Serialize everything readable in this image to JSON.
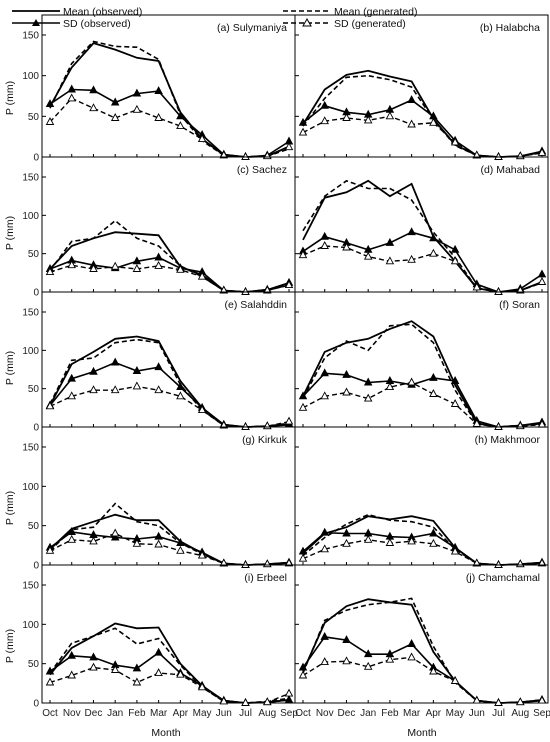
{
  "figure": {
    "xlabel": "Month",
    "ylabel": "P (mm)",
    "legend": {
      "mean_obs": "Mean (observed)",
      "mean_gen": "Mean (generated)",
      "sd_obs": "SD (observed)",
      "sd_gen": "SD (generated)"
    }
  },
  "chart_data": [
    {
      "type": "line",
      "title": "(a) Sulymaniya",
      "categories": [
        "Oct",
        "Nov",
        "Dec",
        "Jan",
        "Feb",
        "Mar",
        "Apr",
        "May",
        "Jun",
        "Jul",
        "Aug",
        "Sep"
      ],
      "ylim": [
        0,
        150
      ],
      "yticks": [
        0,
        50,
        100,
        150
      ],
      "series": [
        {
          "name": "Mean (observed)",
          "values": [
            62,
            110,
            140,
            132,
            122,
            118,
            55,
            22,
            3,
            0,
            1,
            13
          ]
        },
        {
          "name": "Mean (generated)",
          "values": [
            60,
            115,
            142,
            136,
            135,
            120,
            52,
            20,
            2,
            0,
            1,
            10
          ]
        },
        {
          "name": "SD (observed)",
          "values": [
            65,
            83,
            82,
            67,
            78,
            81,
            50,
            27,
            3,
            0,
            2,
            19
          ]
        },
        {
          "name": "SD (generated)",
          "values": [
            43,
            72,
            60,
            48,
            58,
            48,
            38,
            22,
            2,
            0,
            1,
            12
          ]
        }
      ]
    },
    {
      "type": "line",
      "title": "(b) Halabcha",
      "categories": [
        "Oct",
        "Nov",
        "Dec",
        "Jan",
        "Feb",
        "Mar",
        "Apr",
        "May",
        "Jun",
        "Jul",
        "Aug",
        "Sep"
      ],
      "ylim": [
        0,
        150
      ],
      "yticks": [
        0,
        50,
        100,
        150
      ],
      "series": [
        {
          "name": "Mean (observed)",
          "values": [
            40,
            83,
            101,
            106,
            99,
            93,
            47,
            15,
            2,
            0,
            1,
            6
          ]
        },
        {
          "name": "Mean (generated)",
          "values": [
            38,
            72,
            98,
            100,
            95,
            86,
            46,
            14,
            2,
            0,
            1,
            5
          ]
        },
        {
          "name": "SD (observed)",
          "values": [
            42,
            63,
            55,
            52,
            58,
            70,
            50,
            20,
            2,
            0,
            1,
            7
          ]
        },
        {
          "name": "SD (generated)",
          "values": [
            30,
            44,
            48,
            45,
            50,
            40,
            42,
            18,
            2,
            0,
            1,
            5
          ]
        }
      ]
    },
    {
      "type": "line",
      "title": "(c) Sachez",
      "categories": [
        "Oct",
        "Nov",
        "Dec",
        "Jan",
        "Feb",
        "Mar",
        "Apr",
        "May",
        "Jun",
        "Jul",
        "Aug",
        "Sep"
      ],
      "ylim": [
        0,
        150
      ],
      "yticks": [
        0,
        50,
        100,
        150
      ],
      "series": [
        {
          "name": "Mean (observed)",
          "values": [
            30,
            60,
            70,
            78,
            76,
            74,
            33,
            22,
            2,
            0,
            3,
            9
          ]
        },
        {
          "name": "Mean (generated)",
          "values": [
            28,
            66,
            70,
            93,
            70,
            60,
            34,
            20,
            2,
            0,
            2,
            10
          ]
        },
        {
          "name": "SD (observed)",
          "values": [
            30,
            41,
            35,
            31,
            40,
            45,
            31,
            26,
            2,
            0,
            3,
            12
          ]
        },
        {
          "name": "SD (generated)",
          "values": [
            26,
            35,
            30,
            33,
            30,
            34,
            29,
            20,
            2,
            0,
            2,
            9
          ]
        }
      ]
    },
    {
      "type": "line",
      "title": "(d) Mahabad",
      "categories": [
        "Oct",
        "Nov",
        "Dec",
        "Jan",
        "Feb",
        "Mar",
        "Apr",
        "May",
        "Jun",
        "Jul",
        "Aug",
        "Sep"
      ],
      "ylim": [
        0,
        150
      ],
      "yticks": [
        0,
        50,
        100,
        150
      ],
      "series": [
        {
          "name": "Mean (observed)",
          "values": [
            68,
            123,
            130,
            145,
            125,
            141,
            72,
            40,
            5,
            0,
            2,
            13
          ]
        },
        {
          "name": "Mean (generated)",
          "values": [
            80,
            125,
            145,
            135,
            135,
            120,
            78,
            45,
            5,
            0,
            2,
            12
          ]
        },
        {
          "name": "SD (observed)",
          "values": [
            53,
            72,
            64,
            55,
            64,
            78,
            70,
            55,
            10,
            0,
            4,
            23
          ]
        },
        {
          "name": "SD (generated)",
          "values": [
            48,
            60,
            58,
            46,
            40,
            42,
            50,
            40,
            6,
            0,
            2,
            13
          ]
        }
      ]
    },
    {
      "type": "line",
      "title": "(e) Salahddin",
      "categories": [
        "Oct",
        "Nov",
        "Dec",
        "Jan",
        "Feb",
        "Mar",
        "Apr",
        "May",
        "Jun",
        "Jul",
        "Aug",
        "Sep"
      ],
      "ylim": [
        0,
        150
      ],
      "yticks": [
        0,
        50,
        100,
        150
      ],
      "series": [
        {
          "name": "Mean (observed)",
          "values": [
            28,
            82,
            98,
            115,
            118,
            112,
            60,
            25,
            3,
            0,
            1,
            3
          ]
        },
        {
          "name": "Mean (generated)",
          "values": [
            30,
            87,
            90,
            110,
            114,
            110,
            55,
            22,
            2,
            0,
            1,
            5
          ]
        },
        {
          "name": "SD (observed)",
          "values": [
            28,
            63,
            72,
            84,
            73,
            78,
            52,
            25,
            3,
            0,
            1,
            4
          ]
        },
        {
          "name": "SD (generated)",
          "values": [
            27,
            40,
            48,
            48,
            53,
            48,
            40,
            22,
            2,
            0,
            1,
            7
          ]
        }
      ]
    },
    {
      "type": "line",
      "title": "(f) Soran",
      "categories": [
        "Oct",
        "Nov",
        "Dec",
        "Jan",
        "Feb",
        "Mar",
        "Apr",
        "May",
        "Jun",
        "Jul",
        "Aug",
        "Sep"
      ],
      "ylim": [
        0,
        150
      ],
      "yticks": [
        0,
        50,
        100,
        150
      ],
      "series": [
        {
          "name": "Mean (observed)",
          "values": [
            40,
            98,
            110,
            115,
            128,
            138,
            118,
            55,
            5,
            0,
            2,
            5
          ]
        },
        {
          "name": "Mean (generated)",
          "values": [
            38,
            90,
            112,
            100,
            132,
            134,
            110,
            48,
            4,
            0,
            2,
            4
          ]
        },
        {
          "name": "SD (observed)",
          "values": [
            40,
            70,
            68,
            58,
            60,
            55,
            64,
            60,
            8,
            0,
            2,
            6
          ]
        },
        {
          "name": "SD (generated)",
          "values": [
            25,
            40,
            45,
            37,
            52,
            58,
            43,
            30,
            4,
            0,
            1,
            3
          ]
        }
      ]
    },
    {
      "type": "line",
      "title": "(g) Kirkuk",
      "categories": [
        "Oct",
        "Nov",
        "Dec",
        "Jan",
        "Feb",
        "Mar",
        "Apr",
        "May",
        "Jun",
        "Jul",
        "Aug",
        "Sep"
      ],
      "ylim": [
        0,
        150
      ],
      "yticks": [
        0,
        50,
        100,
        150
      ],
      "series": [
        {
          "name": "Mean (observed)",
          "values": [
            20,
            46,
            55,
            64,
            57,
            57,
            30,
            15,
            2,
            0,
            1,
            3
          ]
        },
        {
          "name": "Mean (generated)",
          "values": [
            18,
            45,
            48,
            78,
            55,
            50,
            28,
            14,
            2,
            0,
            1,
            2
          ]
        },
        {
          "name": "SD (observed)",
          "values": [
            22,
            42,
            38,
            35,
            33,
            36,
            28,
            16,
            2,
            0,
            1,
            3
          ]
        },
        {
          "name": "SD (generated)",
          "values": [
            18,
            32,
            30,
            40,
            27,
            26,
            18,
            12,
            2,
            0,
            1,
            2
          ]
        }
      ]
    },
    {
      "type": "line",
      "title": "(h) Makhmoor",
      "categories": [
        "Oct",
        "Nov",
        "Dec",
        "Jan",
        "Feb",
        "Mar",
        "Apr",
        "May",
        "Jun",
        "Jul",
        "Aug",
        "Sep"
      ],
      "ylim": [
        0,
        150
      ],
      "yticks": [
        0,
        50,
        100,
        150
      ],
      "series": [
        {
          "name": "Mean (observed)",
          "values": [
            15,
            40,
            48,
            62,
            58,
            62,
            56,
            22,
            2,
            0,
            1,
            3
          ]
        },
        {
          "name": "Mean (generated)",
          "values": [
            12,
            35,
            52,
            64,
            57,
            55,
            48,
            20,
            2,
            0,
            1,
            2
          ]
        },
        {
          "name": "SD (observed)",
          "values": [
            17,
            41,
            40,
            40,
            36,
            35,
            40,
            22,
            2,
            0,
            1,
            3
          ]
        },
        {
          "name": "SD (generated)",
          "values": [
            8,
            20,
            27,
            32,
            28,
            30,
            27,
            17,
            2,
            0,
            1,
            2
          ]
        }
      ]
    },
    {
      "type": "line",
      "title": "(i) Erbeel",
      "categories": [
        "Oct",
        "Nov",
        "Dec",
        "Jan",
        "Feb",
        "Mar",
        "Apr",
        "May",
        "Jun",
        "Jul",
        "Aug",
        "Sep"
      ],
      "ylim": [
        0,
        150
      ],
      "yticks": [
        0,
        50,
        100,
        150
      ],
      "series": [
        {
          "name": "Mean (observed)",
          "values": [
            36,
            70,
            85,
            101,
            95,
            96,
            50,
            22,
            3,
            0,
            1,
            4
          ]
        },
        {
          "name": "Mean (generated)",
          "values": [
            38,
            76,
            85,
            95,
            75,
            82,
            48,
            20,
            2,
            0,
            2,
            6
          ]
        },
        {
          "name": "SD (observed)",
          "values": [
            40,
            60,
            58,
            48,
            44,
            64,
            38,
            22,
            3,
            0,
            1,
            4
          ]
        },
        {
          "name": "SD (generated)",
          "values": [
            26,
            35,
            45,
            42,
            26,
            38,
            36,
            20,
            2,
            0,
            1,
            12
          ]
        }
      ]
    },
    {
      "type": "line",
      "title": "(j) Chamchamal",
      "categories": [
        "Oct",
        "Nov",
        "Dec",
        "Jan",
        "Feb",
        "Mar",
        "Apr",
        "May",
        "Jun",
        "Jul",
        "Aug",
        "Sep"
      ],
      "ylim": [
        0,
        150
      ],
      "yticks": [
        0,
        50,
        100,
        150
      ],
      "series": [
        {
          "name": "Mean (observed)",
          "values": [
            40,
            102,
            123,
            132,
            128,
            125,
            65,
            28,
            3,
            0,
            1,
            3
          ]
        },
        {
          "name": "Mean (generated)",
          "values": [
            38,
            105,
            118,
            125,
            128,
            133,
            72,
            26,
            3,
            0,
            1,
            4
          ]
        },
        {
          "name": "SD (observed)",
          "values": [
            45,
            84,
            80,
            62,
            62,
            75,
            45,
            28,
            3,
            0,
            1,
            4
          ]
        },
        {
          "name": "SD (generated)",
          "values": [
            35,
            52,
            53,
            46,
            55,
            58,
            40,
            28,
            3,
            0,
            1,
            3
          ]
        }
      ]
    }
  ]
}
